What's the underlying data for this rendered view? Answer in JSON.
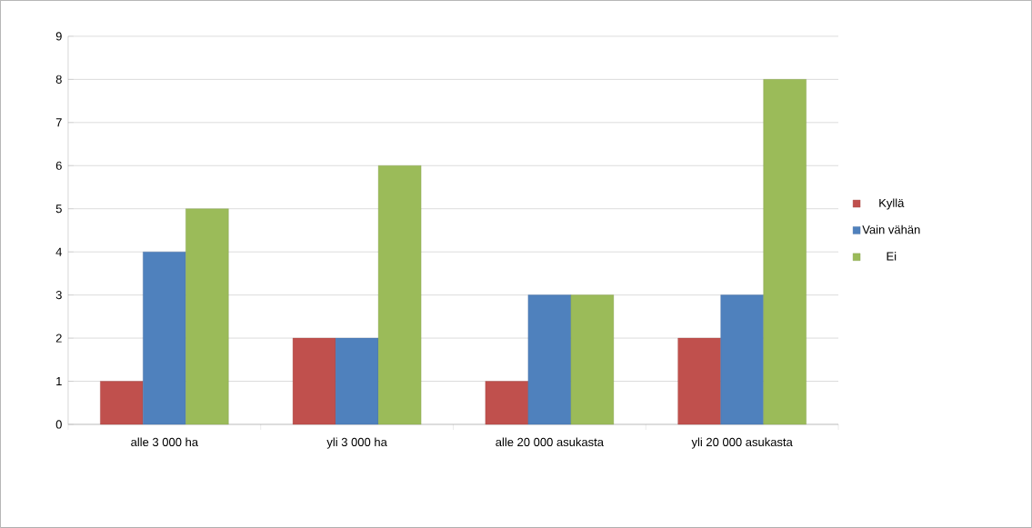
{
  "chart_data": {
    "type": "bar",
    "categories": [
      "alle 3 000 ha",
      "yli 3 000 ha",
      "alle 20 000 asukasta",
      "yli 20 000 asukasta"
    ],
    "series": [
      {
        "name": "Kyllä",
        "color": "#c0504d",
        "values": [
          1,
          2,
          1,
          2
        ]
      },
      {
        "name": "Vain vähän",
        "color": "#4f81bd",
        "values": [
          4,
          2,
          3,
          3
        ]
      },
      {
        "name": "Ei",
        "color": "#9bbb59",
        "values": [
          5,
          6,
          3,
          8
        ]
      }
    ],
    "ylim": [
      0,
      9
    ],
    "yticks": [
      0,
      1,
      2,
      3,
      4,
      5,
      6,
      7,
      8,
      9
    ],
    "grid": "y",
    "legend": "right"
  }
}
